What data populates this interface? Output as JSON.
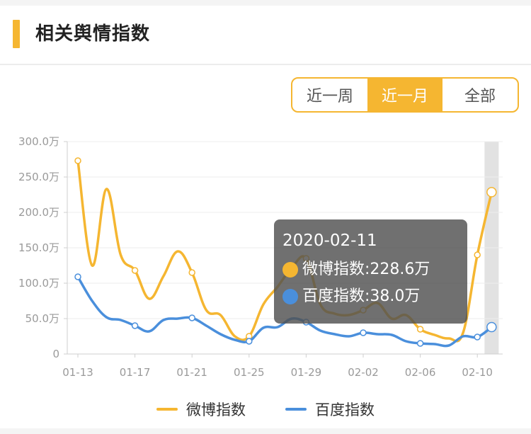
{
  "header": {
    "title": "相关舆情指数"
  },
  "range_tabs": [
    {
      "label": "近一周",
      "active": false
    },
    {
      "label": "近一月",
      "active": true
    },
    {
      "label": "全部",
      "active": false
    }
  ],
  "colors": {
    "weibo": "#f5b631",
    "baidu": "#4a8fdc",
    "accent": "#f5b631"
  },
  "chart_data": {
    "type": "line",
    "x": [
      "01-13",
      "01-14",
      "01-15",
      "01-16",
      "01-17",
      "01-18",
      "01-19",
      "01-20",
      "01-21",
      "01-22",
      "01-23",
      "01-24",
      "01-25",
      "01-26",
      "01-27",
      "01-28",
      "01-29",
      "01-30",
      "01-31",
      "02-01",
      "02-02",
      "02-03",
      "02-04",
      "02-05",
      "02-06",
      "02-07",
      "02-08",
      "02-09",
      "02-10",
      "02-11"
    ],
    "x_tick_labels": [
      "01-13",
      "01-17",
      "01-21",
      "01-25",
      "01-29",
      "02-02",
      "02-06",
      "02-10"
    ],
    "y_tick_labels": [
      "0",
      "50.0万",
      "100.0万",
      "150.0万",
      "200.0万",
      "250.0万",
      "300.0万"
    ],
    "ylim": [
      0,
      300
    ],
    "y_unit": "万",
    "series": [
      {
        "name": "微博指数",
        "values": [
          273,
          125,
          233,
          140,
          118,
          78,
          110,
          145,
          115,
          62,
          55,
          25,
          25,
          70,
          95,
          122,
          135,
          70,
          57,
          55,
          62,
          72,
          50,
          55,
          35,
          27,
          22,
          30,
          140,
          228.6
        ]
      },
      {
        "name": "百度指数",
        "values": [
          109,
          75,
          52,
          48,
          40,
          32,
          48,
          50,
          51,
          40,
          28,
          20,
          18,
          37,
          38,
          50,
          45,
          33,
          28,
          25,
          30,
          28,
          27,
          18,
          15,
          14,
          12,
          25,
          24,
          38.0
        ]
      }
    ],
    "highlight_x": "02-11",
    "tooltip": {
      "date": "2020-02-11",
      "rows": [
        {
          "label": "微博指数:228.6万"
        },
        {
          "label": "百度指数:38.0万"
        }
      ]
    },
    "grid": true,
    "legend_position": "bottom-center"
  }
}
